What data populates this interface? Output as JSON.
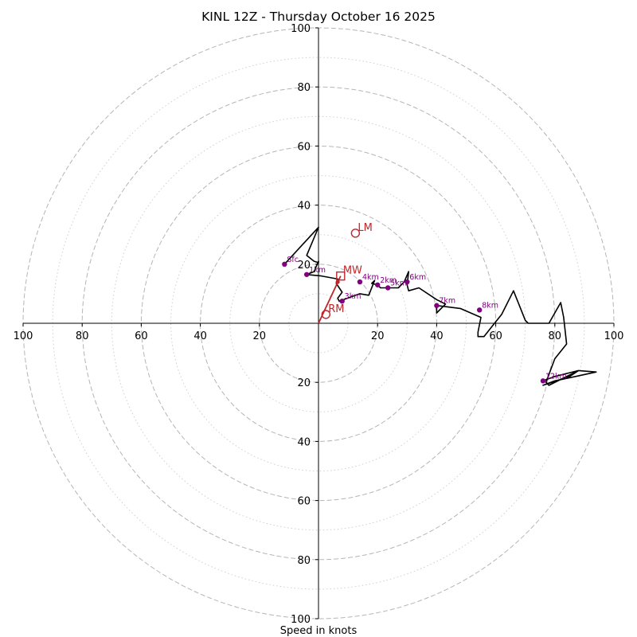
{
  "chart_data": {
    "type": "hodograph",
    "title": "KINL 12Z - Thursday October 16 2025",
    "xlabel": "Speed in knots",
    "ylabel": "",
    "xlim": [
      -100,
      100
    ],
    "ylim": [
      -100,
      100
    ],
    "rings_dashed": [
      20,
      40,
      60,
      80,
      100
    ],
    "rings_dotted": [
      10,
      30,
      50,
      70,
      90
    ],
    "x_tick_labels": [
      "100",
      "80",
      "60",
      "40",
      "20",
      "20",
      "40",
      "60",
      "80",
      "100"
    ],
    "y_tick_labels_upper": [
      "20",
      "40",
      "60",
      "80",
      "100"
    ],
    "y_tick_labels_lower": [
      "20",
      "40",
      "60",
      "80",
      "100"
    ],
    "x_ticks": [
      -100,
      -80,
      -60,
      -40,
      -20,
      20,
      40,
      60,
      80,
      100
    ],
    "y_ticks": [
      -100,
      -80,
      -60,
      -40,
      -20,
      20,
      40,
      60,
      80,
      100
    ],
    "hodograph_trace": {
      "color": "#000000",
      "u": [
        -11.5,
        0,
        -4,
        -1.5,
        0,
        0,
        -1.5,
        -4,
        1,
        6.5,
        6,
        8,
        6.5,
        7,
        14,
        17,
        19,
        18,
        20,
        21,
        24,
        27,
        29,
        30.5,
        30,
        30.5,
        34,
        40,
        43,
        40,
        40,
        48,
        55,
        54,
        54,
        56,
        58,
        62,
        66,
        70,
        71,
        78,
        82,
        83,
        84,
        80,
        77,
        78,
        86,
        88,
        94,
        87,
        80,
        76,
        85,
        88,
        80,
        76
      ],
      "v": [
        20,
        32.5,
        23,
        21,
        20.5,
        21,
        17.5,
        16.5,
        16,
        15,
        13.5,
        10.5,
        8.5,
        7.5,
        10,
        9.5,
        14.5,
        13.5,
        13,
        12,
        12,
        12,
        14,
        17.5,
        13,
        11,
        12,
        8,
        6.5,
        3.5,
        6,
        5,
        2,
        -3,
        -4.5,
        -4.5,
        -2,
        3,
        11,
        1,
        0,
        0,
        7,
        2,
        -7,
        -12,
        -20,
        -21,
        -17,
        -16,
        -16.5,
        -18,
        -19.5,
        -21,
        -18,
        -16,
        -18,
        -19.5
      ]
    },
    "height_markers": [
      {
        "label": "Sfc",
        "u": -11.5,
        "v": 20
      },
      {
        "label": "1km",
        "u": -4,
        "v": 16.5
      },
      {
        "label": "2km",
        "u": 20,
        "v": 13
      },
      {
        "label": "3km",
        "u": 8,
        "v": 7.5
      },
      {
        "label": "4km",
        "u": 14,
        "v": 14
      },
      {
        "label": "5km",
        "u": 23.5,
        "v": 12
      },
      {
        "label": "6km",
        "u": 30,
        "v": 14
      },
      {
        "label": "7km",
        "u": 40,
        "v": 6
      },
      {
        "label": "8km",
        "u": 54.5,
        "v": 4.5
      },
      {
        "label": "12km",
        "u": 76,
        "v": -19.5
      }
    ],
    "motion_markers": [
      {
        "label": "LM",
        "u": 12.5,
        "v": 30.5,
        "symbol": "circle"
      },
      {
        "label": "MW",
        "u": 7.5,
        "v": 16,
        "symbol": "square"
      },
      {
        "label": "RM",
        "u": 2.5,
        "v": 3,
        "symbol": "circle"
      }
    ],
    "shear_vector": {
      "u_start": 0,
      "v_start": 0,
      "u_end": 7.5,
      "v_end": 16
    },
    "colors": {
      "trace": "#000000",
      "height_marker": "#800080",
      "motion": "#c0252a",
      "ring": "#b5b5b5",
      "axis": "#000000"
    }
  }
}
